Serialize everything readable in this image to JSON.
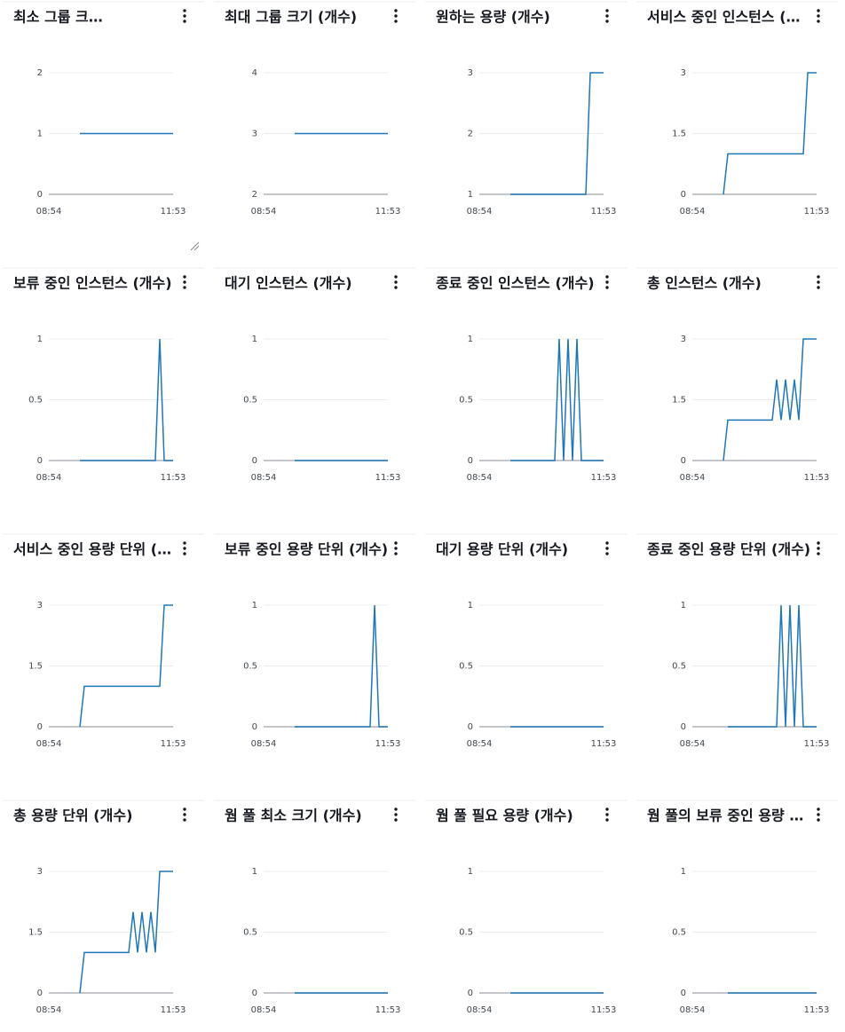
{
  "chart_data": [
    {
      "type": "line",
      "title": "최소 그룹 크…",
      "color": "#1f77b4",
      "ylim": [
        0,
        2
      ],
      "yticks": [
        0,
        1,
        2
      ],
      "categories": [
        "08:54",
        null,
        null,
        null,
        null,
        null,
        null,
        null,
        null,
        null,
        null,
        null,
        null,
        null,
        null,
        null,
        null,
        null,
        null,
        null,
        null,
        null,
        null,
        null,
        null,
        null,
        null,
        null,
        "11:53"
      ],
      "values": [
        null,
        null,
        null,
        null,
        null,
        null,
        null,
        1,
        1,
        1,
        1,
        1,
        1,
        1,
        1,
        1,
        1,
        1,
        1,
        1,
        1,
        1,
        1,
        1,
        1,
        1,
        1,
        1,
        1
      ]
    },
    {
      "type": "line",
      "title": "최대 그룹 크기 (개수)",
      "color": "#1f77b4",
      "ylim": [
        2,
        4
      ],
      "yticks": [
        2,
        3,
        4
      ],
      "categories": [
        "08:54",
        null,
        null,
        null,
        null,
        null,
        null,
        null,
        null,
        null,
        null,
        null,
        null,
        null,
        null,
        null,
        null,
        null,
        null,
        null,
        null,
        null,
        null,
        null,
        null,
        null,
        null,
        null,
        "11:53"
      ],
      "values": [
        null,
        null,
        null,
        null,
        null,
        null,
        null,
        3,
        3,
        3,
        3,
        3,
        3,
        3,
        3,
        3,
        3,
        3,
        3,
        3,
        3,
        3,
        3,
        3,
        3,
        3,
        3,
        3,
        3
      ]
    },
    {
      "type": "line",
      "title": "원하는 용량 (개수)",
      "color": "#1f77b4",
      "ylim": [
        1,
        3
      ],
      "yticks": [
        1,
        2,
        3
      ],
      "categories": [
        "08:54",
        null,
        null,
        null,
        null,
        null,
        null,
        null,
        null,
        null,
        null,
        null,
        null,
        null,
        null,
        null,
        null,
        null,
        null,
        null,
        null,
        null,
        null,
        null,
        null,
        null,
        null,
        null,
        "11:53"
      ],
      "values": [
        null,
        null,
        null,
        null,
        null,
        null,
        null,
        1,
        1,
        1,
        1,
        1,
        1,
        1,
        1,
        1,
        1,
        1,
        1,
        1,
        1,
        1,
        1,
        1,
        1,
        3,
        3,
        3,
        3
      ]
    },
    {
      "type": "line",
      "title": "서비스 중인 인스턴스 (…",
      "color": "#1f77b4",
      "ylim": [
        0,
        3
      ],
      "yticks": [
        0,
        1.5,
        3
      ],
      "categories": [
        "08:54",
        null,
        null,
        null,
        null,
        null,
        null,
        null,
        null,
        null,
        null,
        null,
        null,
        null,
        null,
        null,
        null,
        null,
        null,
        null,
        null,
        null,
        null,
        null,
        null,
        null,
        null,
        null,
        "11:53"
      ],
      "values": [
        null,
        null,
        null,
        null,
        null,
        null,
        null,
        0,
        1,
        1,
        1,
        1,
        1,
        1,
        1,
        1,
        1,
        1,
        1,
        1,
        1,
        1,
        1,
        1,
        1,
        1,
        3,
        3,
        3
      ]
    },
    {
      "type": "line",
      "title": "보류 중인 인스턴스 (개수)",
      "color": "#1f77b4",
      "ylim": [
        0,
        1
      ],
      "yticks": [
        0,
        0.5,
        1
      ],
      "categories": [
        "08:54",
        null,
        null,
        null,
        null,
        null,
        null,
        null,
        null,
        null,
        null,
        null,
        null,
        null,
        null,
        null,
        null,
        null,
        null,
        null,
        null,
        null,
        null,
        null,
        null,
        null,
        null,
        null,
        "11:53"
      ],
      "values": [
        null,
        null,
        null,
        null,
        null,
        null,
        null,
        0,
        0,
        0,
        0,
        0,
        0,
        0,
        0,
        0,
        0,
        0,
        0,
        0,
        0,
        0,
        0,
        0,
        0,
        1,
        0,
        0,
        0
      ]
    },
    {
      "type": "line",
      "title": "대기 인스턴스 (개수)",
      "color": "#1f77b4",
      "ylim": [
        0,
        1
      ],
      "yticks": [
        0,
        0.5,
        1
      ],
      "categories": [
        "08:54",
        null,
        null,
        null,
        null,
        null,
        null,
        null,
        null,
        null,
        null,
        null,
        null,
        null,
        null,
        null,
        null,
        null,
        null,
        null,
        null,
        null,
        null,
        null,
        null,
        null,
        null,
        null,
        "11:53"
      ],
      "values": [
        null,
        null,
        null,
        null,
        null,
        null,
        null,
        0,
        0,
        0,
        0,
        0,
        0,
        0,
        0,
        0,
        0,
        0,
        0,
        0,
        0,
        0,
        0,
        0,
        0,
        0,
        0,
        0,
        0
      ]
    },
    {
      "type": "line",
      "title": "종료 중인 인스턴스 (개수)",
      "color": "#1f77b4",
      "ylim": [
        0,
        1
      ],
      "yticks": [
        0,
        0.5,
        1
      ],
      "categories": [
        "08:54",
        null,
        null,
        null,
        null,
        null,
        null,
        null,
        null,
        null,
        null,
        null,
        null,
        null,
        null,
        null,
        null,
        null,
        null,
        null,
        null,
        null,
        null,
        null,
        null,
        null,
        null,
        null,
        "11:53"
      ],
      "values": [
        null,
        null,
        null,
        null,
        null,
        null,
        null,
        0,
        0,
        0,
        0,
        0,
        0,
        0,
        0,
        0,
        0,
        0,
        1,
        0,
        1,
        0,
        1,
        0,
        0,
        0,
        0,
        0,
        0
      ]
    },
    {
      "type": "line",
      "title": "총 인스턴스 (개수)",
      "color": "#1f77b4",
      "ylim": [
        0,
        3
      ],
      "yticks": [
        0,
        1.5,
        3
      ],
      "categories": [
        "08:54",
        null,
        null,
        null,
        null,
        null,
        null,
        null,
        null,
        null,
        null,
        null,
        null,
        null,
        null,
        null,
        null,
        null,
        null,
        null,
        null,
        null,
        null,
        null,
        null,
        null,
        null,
        null,
        "11:53"
      ],
      "values": [
        null,
        null,
        null,
        null,
        null,
        null,
        null,
        0,
        1,
        1,
        1,
        1,
        1,
        1,
        1,
        1,
        1,
        1,
        1,
        2,
        1,
        2,
        1,
        2,
        1,
        3,
        3,
        3,
        3
      ]
    },
    {
      "type": "line",
      "title": "서비스 중인 용량 단위 (…",
      "color": "#1f77b4",
      "ylim": [
        0,
        3
      ],
      "yticks": [
        0,
        1.5,
        3
      ],
      "categories": [
        "08:54",
        null,
        null,
        null,
        null,
        null,
        null,
        null,
        null,
        null,
        null,
        null,
        null,
        null,
        null,
        null,
        null,
        null,
        null,
        null,
        null,
        null,
        null,
        null,
        null,
        null,
        null,
        null,
        "11:53"
      ],
      "values": [
        null,
        null,
        null,
        null,
        null,
        null,
        null,
        0,
        1,
        1,
        1,
        1,
        1,
        1,
        1,
        1,
        1,
        1,
        1,
        1,
        1,
        1,
        1,
        1,
        1,
        1,
        3,
        3,
        3
      ]
    },
    {
      "type": "line",
      "title": "보류 중인 용량 단위 (개수)",
      "color": "#1f77b4",
      "ylim": [
        0,
        1
      ],
      "yticks": [
        0,
        0.5,
        1
      ],
      "categories": [
        "08:54",
        null,
        null,
        null,
        null,
        null,
        null,
        null,
        null,
        null,
        null,
        null,
        null,
        null,
        null,
        null,
        null,
        null,
        null,
        null,
        null,
        null,
        null,
        null,
        null,
        null,
        null,
        null,
        "11:53"
      ],
      "values": [
        null,
        null,
        null,
        null,
        null,
        null,
        null,
        0,
        0,
        0,
        0,
        0,
        0,
        0,
        0,
        0,
        0,
        0,
        0,
        0,
        0,
        0,
        0,
        0,
        0,
        1,
        0,
        0,
        0
      ]
    },
    {
      "type": "line",
      "title": "대기 용량 단위 (개수)",
      "color": "#1f77b4",
      "ylim": [
        0,
        1
      ],
      "yticks": [
        0,
        0.5,
        1
      ],
      "categories": [
        "08:54",
        null,
        null,
        null,
        null,
        null,
        null,
        null,
        null,
        null,
        null,
        null,
        null,
        null,
        null,
        null,
        null,
        null,
        null,
        null,
        null,
        null,
        null,
        null,
        null,
        null,
        null,
        null,
        "11:53"
      ],
      "values": [
        null,
        null,
        null,
        null,
        null,
        null,
        null,
        0,
        0,
        0,
        0,
        0,
        0,
        0,
        0,
        0,
        0,
        0,
        0,
        0,
        0,
        0,
        0,
        0,
        0,
        0,
        0,
        0,
        0
      ]
    },
    {
      "type": "line",
      "title": "종료 중인 용량 단위 (개수)",
      "color": "#1f77b4",
      "ylim": [
        0,
        1
      ],
      "yticks": [
        0,
        0.5,
        1
      ],
      "categories": [
        "08:54",
        null,
        null,
        null,
        null,
        null,
        null,
        null,
        null,
        null,
        null,
        null,
        null,
        null,
        null,
        null,
        null,
        null,
        null,
        null,
        null,
        null,
        null,
        null,
        null,
        null,
        null,
        null,
        "11:53"
      ],
      "values": [
        null,
        null,
        null,
        null,
        null,
        null,
        null,
        null,
        0,
        0,
        0,
        0,
        0,
        0,
        0,
        0,
        0,
        0,
        0,
        0,
        1,
        0,
        1,
        0,
        1,
        0,
        0,
        0,
        0
      ]
    },
    {
      "type": "line",
      "title": "총 용량 단위 (개수)",
      "color": "#1f77b4",
      "ylim": [
        0,
        3
      ],
      "yticks": [
        0,
        1.5,
        3
      ],
      "categories": [
        "08:54",
        null,
        null,
        null,
        null,
        null,
        null,
        null,
        null,
        null,
        null,
        null,
        null,
        null,
        null,
        null,
        null,
        null,
        null,
        null,
        null,
        null,
        null,
        null,
        null,
        null,
        null,
        null,
        "11:53"
      ],
      "values": [
        null,
        null,
        null,
        null,
        null,
        null,
        null,
        0,
        1,
        1,
        1,
        1,
        1,
        1,
        1,
        1,
        1,
        1,
        1,
        2,
        1,
        2,
        1,
        2,
        1,
        3,
        3,
        3,
        3
      ]
    },
    {
      "type": "line",
      "title": "웜 풀 최소 크기 (개수)",
      "color": "#1f77b4",
      "ylim": [
        0,
        1
      ],
      "yticks": [
        0,
        0.5,
        1
      ],
      "categories": [
        "08:54",
        null,
        null,
        null,
        null,
        null,
        null,
        null,
        null,
        null,
        null,
        null,
        null,
        null,
        null,
        null,
        null,
        null,
        null,
        null,
        null,
        null,
        null,
        null,
        null,
        null,
        null,
        null,
        "11:53"
      ],
      "values": [
        null,
        null,
        null,
        null,
        null,
        null,
        null,
        0,
        0,
        0,
        0,
        0,
        0,
        0,
        0,
        0,
        0,
        0,
        0,
        0,
        0,
        0,
        0,
        0,
        0,
        0,
        0,
        0,
        0
      ]
    },
    {
      "type": "line",
      "title": "웜 풀 필요 용량 (개수)",
      "color": "#1f77b4",
      "ylim": [
        0,
        1
      ],
      "yticks": [
        0,
        0.5,
        1
      ],
      "categories": [
        "08:54",
        null,
        null,
        null,
        null,
        null,
        null,
        null,
        null,
        null,
        null,
        null,
        null,
        null,
        null,
        null,
        null,
        null,
        null,
        null,
        null,
        null,
        null,
        null,
        null,
        null,
        null,
        null,
        "11:53"
      ],
      "values": [
        null,
        null,
        null,
        null,
        null,
        null,
        null,
        0,
        0,
        0,
        0,
        0,
        0,
        0,
        0,
        0,
        0,
        0,
        0,
        0,
        0,
        0,
        0,
        0,
        0,
        0,
        0,
        0,
        0
      ]
    },
    {
      "type": "line",
      "title": "웜 풀의 보류 중인 용량 …",
      "color": "#1f77b4",
      "ylim": [
        0,
        1
      ],
      "yticks": [
        0,
        0.5,
        1
      ],
      "categories": [
        "08:54",
        null,
        null,
        null,
        null,
        null,
        null,
        null,
        null,
        null,
        null,
        null,
        null,
        null,
        null,
        null,
        null,
        null,
        null,
        null,
        null,
        null,
        null,
        null,
        null,
        null,
        null,
        null,
        "11:53"
      ],
      "values": [
        null,
        null,
        null,
        null,
        null,
        null,
        null,
        null,
        0,
        0,
        0,
        0,
        0,
        0,
        0,
        0,
        0,
        0,
        0,
        0,
        0,
        0,
        0,
        0,
        0,
        0,
        0,
        0,
        0
      ]
    }
  ]
}
